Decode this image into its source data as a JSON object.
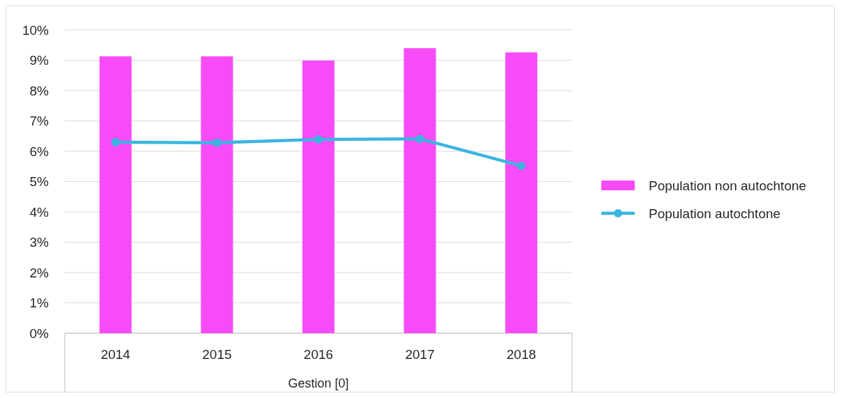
{
  "chart_data": {
    "type": "bar",
    "xlabel": "Gestion [0]",
    "categories": [
      "2014",
      "2015",
      "2016",
      "2017",
      "2018"
    ],
    "series": [
      {
        "name": "Population non autochtone",
        "color": "#f84bf8",
        "values": [
          9.13,
          9.13,
          8.99,
          9.4,
          9.26
        ]
      },
      {
        "name": "Population autochtone",
        "type": "line",
        "color": "#3bb5e0",
        "values": [
          6.3,
          6.28,
          6.39,
          6.41,
          5.52
        ]
      }
    ],
    "ylim": [
      0,
      10
    ],
    "yticks": [
      {
        "value": 0,
        "label": "0%"
      },
      {
        "value": 1,
        "label": "1%"
      },
      {
        "value": 2,
        "label": "2%"
      },
      {
        "value": 3,
        "label": "3%"
      },
      {
        "value": 4,
        "label": "4%"
      },
      {
        "value": 5,
        "label": "5%"
      },
      {
        "value": 6,
        "label": "6%"
      },
      {
        "value": 7,
        "label": "7%"
      },
      {
        "value": 8,
        "label": "8%"
      },
      {
        "value": 9,
        "label": "9%"
      },
      {
        "value": 10,
        "label": "10%"
      }
    ],
    "grid": "y",
    "legend": "right",
    "marker": "circle"
  }
}
